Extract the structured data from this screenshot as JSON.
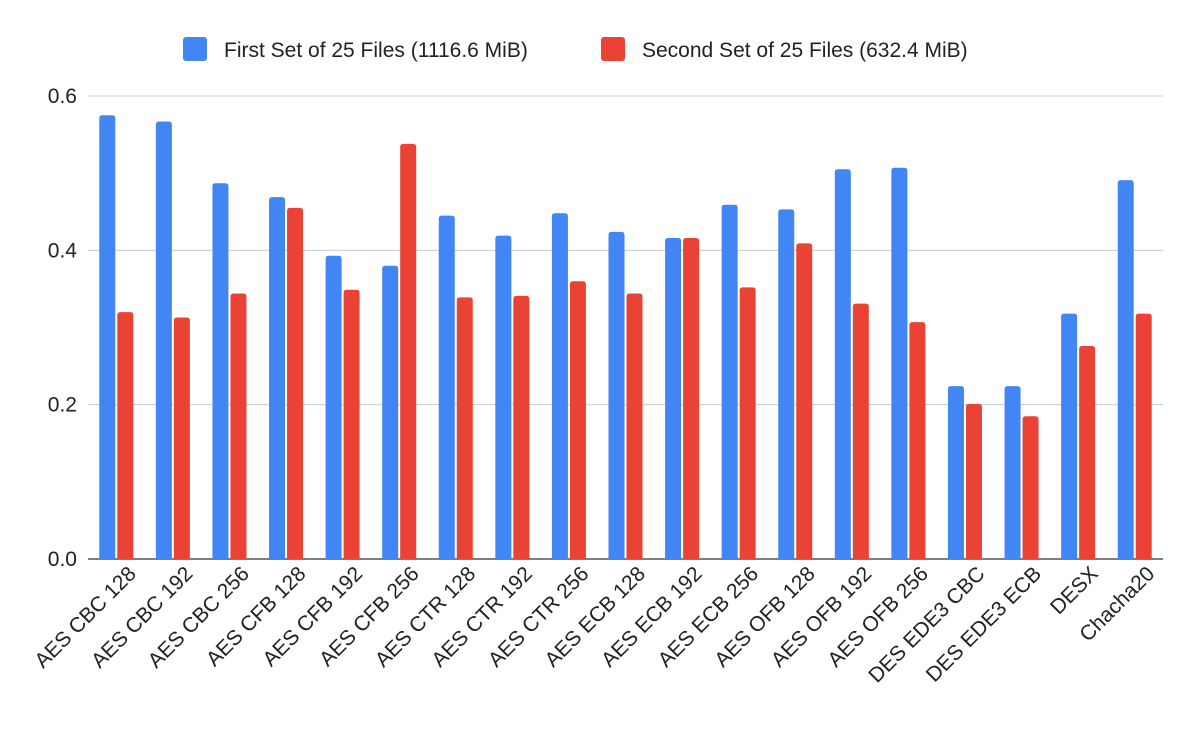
{
  "chart_data": {
    "type": "bar",
    "title": "",
    "xlabel": "",
    "ylabel": "",
    "ylim": [
      0,
      0.6
    ],
    "yticks": [
      0.0,
      0.2,
      0.4,
      0.6
    ],
    "ytick_labels": [
      "0.0",
      "0.2",
      "0.4",
      "0.6"
    ],
    "grid": true,
    "legend_position": "top",
    "categories": [
      "AES CBC 128",
      "AES CBC 192",
      "AES CBC 256",
      "AES CFB 128",
      "AES CFB 192",
      "AES CFB 256",
      "AES CTR 128",
      "AES CTR 192",
      "AES CTR 256",
      "AES ECB 128",
      "AES ECB 192",
      "AES ECB 256",
      "AES OFB 128",
      "AES OFB 192",
      "AES OFB 256",
      "DES EDE3 CBC",
      "DES EDE3 ECB",
      "DESX",
      "Chacha20"
    ],
    "series": [
      {
        "name": "First Set of 25 Files (1116.6 MiB)",
        "color": "#4285f4",
        "values": [
          0.575,
          0.567,
          0.487,
          0.469,
          0.393,
          0.38,
          0.445,
          0.419,
          0.448,
          0.424,
          0.416,
          0.459,
          0.453,
          0.505,
          0.507,
          0.224,
          0.224,
          0.318,
          0.491
        ]
      },
      {
        "name": "Second Set of 25 Files (632.4 MiB)",
        "color": "#ea4335",
        "values": [
          0.32,
          0.313,
          0.344,
          0.455,
          0.349,
          0.538,
          0.339,
          0.341,
          0.36,
          0.344,
          0.416,
          0.352,
          0.409,
          0.331,
          0.307,
          0.201,
          0.185,
          0.276,
          0.318
        ]
      }
    ]
  }
}
